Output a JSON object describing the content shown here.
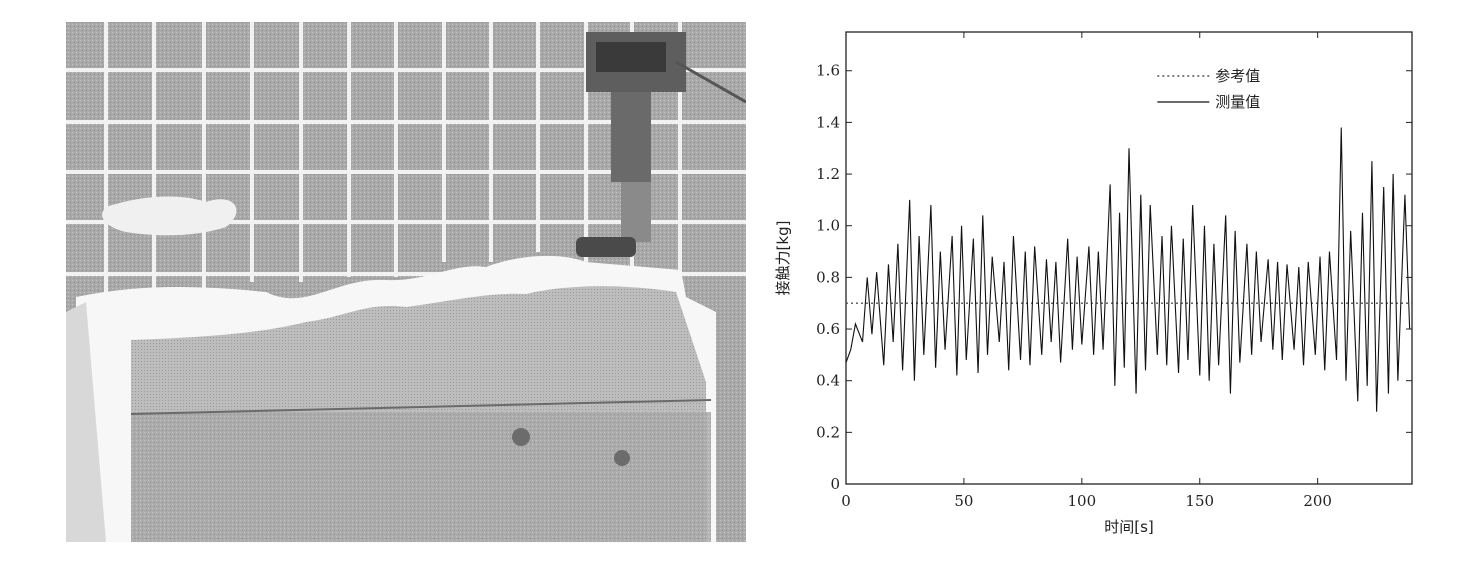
{
  "figure": {
    "photo": {
      "subject": "robot end effector pressing on wavy foam surface in front of grid wall"
    }
  },
  "chart_data": {
    "type": "line",
    "xlabel": "时间[s]",
    "ylabel": "接触力[kg]",
    "xlim": [
      0,
      240
    ],
    "ylim": [
      0,
      1.75
    ],
    "xticks": [
      0,
      50,
      100,
      150,
      200
    ],
    "yticks": [
      0,
      0.2,
      0.4,
      0.6,
      0.8,
      1.0,
      1.2,
      1.4,
      1.6
    ],
    "ytick_labels": [
      "0",
      "0.2",
      "0.4",
      "0.6",
      "0.8",
      "1.0",
      "1.2",
      "1.4",
      "1.6"
    ],
    "legend_position": "top-right",
    "grid": false,
    "series": [
      {
        "name": "参考值",
        "style": "dotted",
        "color": "#555555",
        "x": [
          0,
          240
        ],
        "values": [
          0.7,
          0.7
        ]
      },
      {
        "name": "测量值",
        "style": "solid",
        "color": "#111111",
        "x": [
          0,
          2,
          4,
          7,
          9,
          11,
          13,
          16,
          18,
          20,
          22,
          24,
          27,
          29,
          31,
          33,
          36,
          38,
          40,
          42,
          45,
          47,
          49,
          51,
          54,
          56,
          58,
          60,
          62,
          65,
          67,
          69,
          71,
          74,
          76,
          78,
          80,
          83,
          85,
          87,
          89,
          91,
          94,
          96,
          98,
          100,
          103,
          105,
          107,
          109,
          112,
          114,
          116,
          118,
          120,
          123,
          125,
          127,
          129,
          132,
          134,
          136,
          138,
          141,
          143,
          145,
          147,
          150,
          152,
          154,
          156,
          158,
          161,
          163,
          165,
          167,
          170,
          172,
          174,
          176,
          179,
          181,
          183,
          185,
          187,
          190,
          192,
          194,
          196,
          199,
          201,
          203,
          205,
          208,
          210,
          212,
          214,
          217,
          219,
          221,
          223,
          225,
          228,
          230,
          232,
          234,
          237,
          239
        ],
        "values": [
          0.47,
          0.52,
          0.62,
          0.55,
          0.8,
          0.58,
          0.82,
          0.46,
          0.85,
          0.55,
          0.93,
          0.44,
          1.1,
          0.4,
          0.96,
          0.5,
          1.08,
          0.45,
          0.9,
          0.52,
          0.96,
          0.42,
          1.0,
          0.48,
          0.95,
          0.43,
          1.04,
          0.5,
          0.88,
          0.55,
          0.86,
          0.44,
          0.96,
          0.48,
          0.9,
          0.46,
          0.92,
          0.5,
          0.87,
          0.55,
          0.86,
          0.47,
          0.95,
          0.52,
          0.88,
          0.54,
          0.92,
          0.5,
          0.9,
          0.52,
          1.16,
          0.38,
          1.05,
          0.45,
          1.3,
          0.35,
          1.12,
          0.44,
          1.08,
          0.5,
          0.96,
          0.46,
          1.0,
          0.43,
          0.95,
          0.48,
          1.08,
          0.42,
          1.0,
          0.4,
          0.93,
          0.46,
          1.04,
          0.35,
          0.98,
          0.47,
          0.93,
          0.5,
          0.9,
          0.55,
          0.87,
          0.52,
          0.86,
          0.48,
          0.85,
          0.52,
          0.84,
          0.46,
          0.86,
          0.5,
          0.88,
          0.44,
          0.9,
          0.48,
          1.38,
          0.4,
          0.98,
          0.32,
          1.05,
          0.38,
          1.25,
          0.28,
          1.15,
          0.35,
          1.2,
          0.4,
          1.12,
          0.6
        ]
      }
    ]
  }
}
